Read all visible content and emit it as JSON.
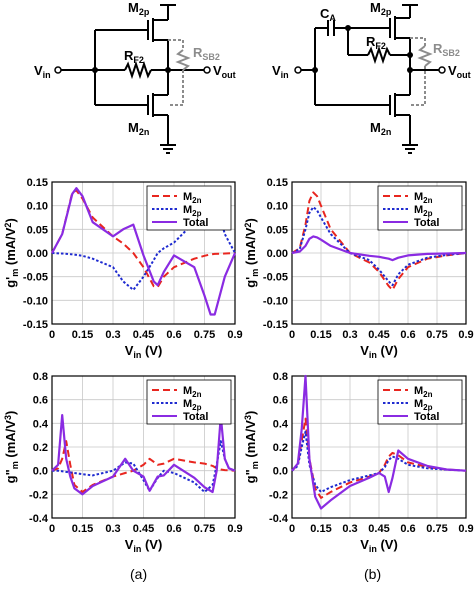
{
  "circuits": [
    {
      "m_top": "M",
      "m_top_sub": "2p",
      "m_bot": "M",
      "m_bot_sub": "2n",
      "rf": "R",
      "rf_sub": "F2",
      "rsb": "R",
      "rsb_sub": "SB2",
      "vin": "V",
      "vin_sub": "in",
      "vout": "V",
      "vout_sub": "out"
    },
    {
      "m_top": "M",
      "m_top_sub": "2p",
      "m_bot": "M",
      "m_bot_sub": "2n",
      "rf": "R",
      "rf_sub": "F2",
      "rsb": "R",
      "rsb_sub": "SB2",
      "vin": "V",
      "vin_sub": "in",
      "vout": "V",
      "vout_sub": "out",
      "ca": "C",
      "ca_sub": "A"
    }
  ],
  "captions": [
    "(a)",
    "(b)"
  ],
  "colors": {
    "m2n": "#e8261f",
    "m2p": "#1f2bd0",
    "total": "#8a2be2",
    "grid": "#c8c8c8",
    "rsb": "#8c8c8c"
  },
  "chart_data": [
    {
      "id": "a-gm2",
      "type": "line",
      "ylabel": {
        "main": "g'",
        "sub": "m",
        "tail": " (mA/V",
        "sup": "2",
        "end": ")"
      },
      "xlabel": {
        "main": "V",
        "sub": "in",
        "tail": " (V)"
      },
      "xlim": [
        0,
        0.9
      ],
      "ylim": [
        -0.15,
        0.15
      ],
      "xticks": [
        "0",
        "0.15",
        "0.3",
        "0.45",
        "0.6",
        "0.75",
        "0.9"
      ],
      "yticks": [
        "0.15",
        "0.10",
        "0.05",
        "0.00",
        "-0.05",
        "-0.10",
        "-0.15"
      ],
      "grid": true,
      "legend": "top-right",
      "x": [
        0,
        0.05,
        0.1,
        0.12,
        0.15,
        0.2,
        0.3,
        0.35,
        0.4,
        0.45,
        0.5,
        0.52,
        0.55,
        0.6,
        0.7,
        0.75,
        0.78,
        0.8,
        0.85,
        0.9
      ],
      "series": [
        {
          "name": "M",
          "sub": "2n",
          "style": "dash",
          "values": [
            0,
            0.04,
            0.128,
            0.132,
            0.115,
            0.075,
            0.035,
            0.02,
            0.0,
            -0.03,
            -0.07,
            -0.072,
            -0.05,
            -0.03,
            -0.012,
            -0.006,
            -0.003,
            -0.002,
            -0.001,
            0
          ]
        },
        {
          "name": "M",
          "sub": "2p",
          "style": "dot",
          "values": [
            0,
            -0.001,
            -0.003,
            -0.004,
            -0.006,
            -0.012,
            -0.03,
            -0.06,
            -0.078,
            -0.05,
            -0.015,
            0.0,
            0.01,
            0.022,
            0.065,
            0.11,
            0.128,
            0.12,
            0.04,
            0
          ]
        },
        {
          "name": "Total",
          "style": "solid",
          "values": [
            0,
            0.04,
            0.125,
            0.137,
            0.12,
            0.065,
            0.035,
            0.05,
            0.06,
            -0.005,
            -0.06,
            -0.068,
            -0.04,
            -0.005,
            -0.03,
            -0.09,
            -0.13,
            -0.13,
            -0.05,
            0
          ]
        }
      ]
    },
    {
      "id": "b-gm2",
      "type": "line",
      "ylabel": {
        "main": "g'",
        "sub": "m",
        "tail": " (mA/V",
        "sup": "2",
        "end": ")"
      },
      "xlabel": {
        "main": "V",
        "sub": "in",
        "tail": " (V)"
      },
      "xlim": [
        0,
        0.9
      ],
      "ylim": [
        -0.15,
        0.15
      ],
      "xticks": [
        "0",
        "0.15",
        "0.3",
        "0.45",
        "0.6",
        "0.75",
        "0.9"
      ],
      "yticks": [
        "0.15",
        "0.10",
        "0.05",
        "0.00",
        "-0.05",
        "-0.10",
        "-0.15"
      ],
      "grid": true,
      "legend": "top-right",
      "x": [
        0,
        0.04,
        0.07,
        0.09,
        0.11,
        0.13,
        0.15,
        0.2,
        0.3,
        0.4,
        0.45,
        0.5,
        0.52,
        0.55,
        0.6,
        0.7,
        0.8,
        0.9
      ],
      "series": [
        {
          "name": "M",
          "sub": "2n",
          "style": "dash",
          "values": [
            0,
            0.01,
            0.06,
            0.11,
            0.128,
            0.12,
            0.1,
            0.05,
            0.0,
            -0.02,
            -0.04,
            -0.07,
            -0.078,
            -0.055,
            -0.03,
            -0.012,
            -0.005,
            0
          ]
        },
        {
          "name": "M",
          "sub": "2p",
          "style": "dot",
          "values": [
            0,
            0.008,
            0.05,
            0.085,
            0.097,
            0.09,
            0.075,
            0.04,
            0.0,
            -0.015,
            -0.035,
            -0.06,
            -0.068,
            -0.045,
            -0.025,
            -0.01,
            -0.004,
            0
          ]
        },
        {
          "name": "Total",
          "style": "solid",
          "values": [
            0,
            0.003,
            0.015,
            0.03,
            0.035,
            0.033,
            0.028,
            0.015,
            0.0,
            -0.006,
            -0.008,
            -0.012,
            -0.015,
            -0.01,
            -0.005,
            -0.002,
            -0.001,
            0
          ]
        }
      ]
    },
    {
      "id": "a-gm3",
      "type": "line",
      "ylabel": {
        "main": "g\"",
        "sub": "m",
        "tail": " (mA/V",
        "sup": "3",
        "end": ")"
      },
      "xlabel": {
        "main": "V",
        "sub": "in",
        "tail": " (V)"
      },
      "xlim": [
        0,
        0.9
      ],
      "ylim": [
        -0.4,
        0.8
      ],
      "xticks": [
        "0",
        "0.15",
        "0.3",
        "0.45",
        "0.6",
        "0.75",
        "0.9"
      ],
      "yticks": [
        "0.8",
        "0.6",
        "0.4",
        "0.2",
        "0.0",
        "-0.2",
        "-0.4"
      ],
      "grid": true,
      "legend": "top-right",
      "x": [
        0,
        0.03,
        0.05,
        0.07,
        0.09,
        0.11,
        0.15,
        0.2,
        0.3,
        0.36,
        0.4,
        0.45,
        0.48,
        0.52,
        0.55,
        0.6,
        0.7,
        0.75,
        0.79,
        0.81,
        0.83,
        0.85,
        0.87,
        0.9
      ],
      "series": [
        {
          "name": "M",
          "sub": "2n",
          "style": "dash",
          "values": [
            0,
            0.02,
            0.1,
            0.25,
            0.05,
            -0.12,
            -0.18,
            -0.12,
            -0.05,
            -0.02,
            0.0,
            0.05,
            0.1,
            0.05,
            0.06,
            0.1,
            0.07,
            0.06,
            0.04,
            0.02,
            0.01,
            0.005,
            0.002,
            0
          ]
        },
        {
          "name": "M",
          "sub": "2p",
          "style": "dot",
          "values": [
            0,
            0.0,
            -0.005,
            -0.01,
            -0.015,
            -0.02,
            -0.03,
            -0.04,
            0.0,
            0.07,
            0.06,
            -0.08,
            -0.17,
            -0.06,
            0.0,
            -0.02,
            -0.1,
            -0.18,
            -0.12,
            0.05,
            0.25,
            0.1,
            0.02,
            0
          ]
        },
        {
          "name": "Total",
          "style": "solid",
          "values": [
            0,
            0.05,
            0.47,
            0.1,
            -0.05,
            -0.15,
            -0.2,
            -0.13,
            -0.05,
            0.1,
            0.0,
            -0.05,
            -0.17,
            -0.05,
            -0.04,
            0.05,
            -0.06,
            -0.14,
            -0.18,
            0.0,
            0.46,
            0.1,
            0.02,
            0
          ]
        }
      ]
    },
    {
      "id": "b-gm3",
      "type": "line",
      "ylabel": {
        "main": "g\"",
        "sub": "m",
        "tail": " (mA/V",
        "sup": "3",
        "end": ")"
      },
      "xlabel": {
        "main": "V",
        "sub": "in",
        "tail": " (V)"
      },
      "xlim": [
        0,
        0.9
      ],
      "ylim": [
        -0.4,
        0.8
      ],
      "xticks": [
        "0",
        "0.15",
        "0.3",
        "0.45",
        "0.6",
        "0.75",
        "0.9"
      ],
      "yticks": [
        "0.8",
        "0.6",
        "0.4",
        "0.2",
        "0.0",
        "-0.2",
        "-0.4"
      ],
      "grid": true,
      "legend": "top-right",
      "x": [
        0,
        0.03,
        0.05,
        0.07,
        0.09,
        0.12,
        0.15,
        0.2,
        0.3,
        0.4,
        0.45,
        0.48,
        0.5,
        0.52,
        0.55,
        0.6,
        0.7,
        0.8,
        0.9
      ],
      "series": [
        {
          "name": "M",
          "sub": "2n",
          "style": "dash",
          "values": [
            0,
            0.05,
            0.25,
            0.44,
            0.1,
            -0.15,
            -0.23,
            -0.18,
            -0.1,
            -0.05,
            -0.02,
            0.05,
            0.12,
            0.15,
            0.13,
            0.07,
            0.03,
            0.01,
            0
          ]
        },
        {
          "name": "M",
          "sub": "2p",
          "style": "dot",
          "values": [
            0,
            0.04,
            0.2,
            0.33,
            0.05,
            -0.12,
            -0.18,
            -0.14,
            -0.08,
            -0.04,
            -0.02,
            0.03,
            0.09,
            0.12,
            0.1,
            0.05,
            0.02,
            0.008,
            0
          ]
        },
        {
          "name": "Total",
          "style": "solid",
          "values": [
            0,
            0.06,
            0.35,
            0.8,
            0.1,
            -0.22,
            -0.32,
            -0.25,
            -0.13,
            -0.06,
            -0.02,
            -0.05,
            -0.18,
            -0.06,
            0.17,
            0.1,
            0.04,
            0.01,
            0
          ]
        }
      ]
    }
  ]
}
